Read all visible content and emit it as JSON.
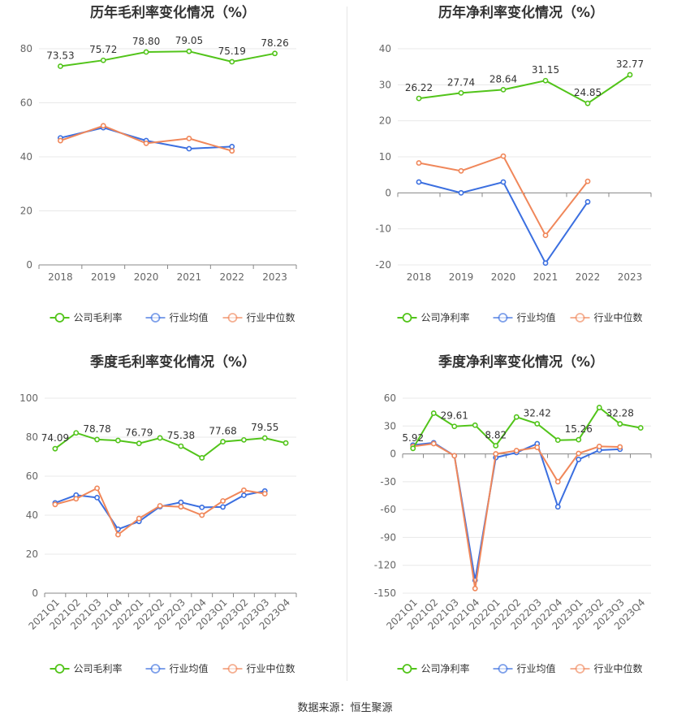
{
  "source_label": "数据来源：恒生聚源",
  "colors": {
    "company": "#52c41a",
    "industry_avg": "#3b6fe0",
    "industry_median": "#f0875a"
  },
  "chart_data": [
    {
      "type": "line",
      "title": "历年毛利率变化情况（%）",
      "categories": [
        "2018",
        "2019",
        "2020",
        "2021",
        "2022",
        "2023"
      ],
      "ylim": [
        0,
        80
      ],
      "yticks": [
        0,
        20,
        40,
        60,
        80
      ],
      "grid": true,
      "legend_position": "bottom",
      "series": [
        {
          "name": "公司毛利率",
          "key": "company",
          "values": [
            73.53,
            75.72,
            78.8,
            79.05,
            75.19,
            78.26
          ],
          "labels": [
            "73.53",
            "75.72",
            "78.80",
            "79.05",
            "75.19",
            "78.26"
          ]
        },
        {
          "name": "行业均值",
          "key": "industry_avg",
          "values": [
            47.0,
            50.8,
            46.0,
            43.0,
            43.8,
            null
          ]
        },
        {
          "name": "行业中位数",
          "key": "industry_median",
          "values": [
            46.0,
            51.5,
            45.0,
            46.8,
            42.2,
            null
          ]
        }
      ]
    },
    {
      "type": "line",
      "title": "历年净利率变化情况（%）",
      "categories": [
        "2018",
        "2019",
        "2020",
        "2021",
        "2022",
        "2023"
      ],
      "ylim": [
        -20,
        40
      ],
      "yticks": [
        -20,
        -10,
        0,
        10,
        20,
        30,
        40
      ],
      "grid": true,
      "legend_position": "bottom",
      "series": [
        {
          "name": "公司净利率",
          "key": "company",
          "values": [
            26.22,
            27.74,
            28.64,
            31.15,
            24.85,
            32.77
          ],
          "labels": [
            "26.22",
            "27.74",
            "28.64",
            "31.15",
            "24.85",
            "32.77"
          ]
        },
        {
          "name": "行业均值",
          "key": "industry_avg",
          "values": [
            3.0,
            0.0,
            3.0,
            -19.5,
            -2.5,
            null
          ]
        },
        {
          "name": "行业中位数",
          "key": "industry_median",
          "values": [
            8.3,
            6.1,
            10.2,
            -11.8,
            3.2,
            null
          ]
        }
      ]
    },
    {
      "type": "line",
      "title": "季度毛利率变化情况（%）",
      "categories": [
        "2021Q1",
        "2021Q2",
        "2021Q3",
        "2021Q4",
        "2022Q1",
        "2022Q2",
        "2022Q3",
        "2022Q4",
        "2023Q1",
        "2023Q2",
        "2023Q3",
        "2023Q4"
      ],
      "ylim": [
        0,
        100
      ],
      "yticks": [
        0,
        20,
        40,
        60,
        80,
        100
      ],
      "grid": true,
      "legend_position": "bottom",
      "series": [
        {
          "name": "公司毛利率",
          "key": "company",
          "values": [
            74.09,
            82.2,
            78.78,
            78.3,
            76.79,
            79.6,
            75.38,
            69.4,
            77.68,
            78.6,
            79.55,
            77.0
          ],
          "labels": [
            "74.09",
            null,
            "78.78",
            null,
            "76.79",
            null,
            "75.38",
            null,
            "77.68",
            null,
            "79.55",
            null
          ]
        },
        {
          "name": "行业均值",
          "key": "industry_avg",
          "values": [
            46.3,
            50.3,
            49.0,
            32.8,
            36.8,
            44.4,
            46.6,
            44.0,
            44.2,
            50.2,
            52.4,
            null
          ]
        },
        {
          "name": "行业中位数",
          "key": "industry_median",
          "values": [
            45.5,
            48.4,
            53.8,
            30.0,
            38.3,
            44.8,
            44.3,
            40.0,
            47.3,
            52.8,
            51.0,
            null
          ]
        }
      ]
    },
    {
      "type": "line",
      "title": "季度净利率变化情况（%）",
      "categories": [
        "2021Q1",
        "2021Q2",
        "2021Q3",
        "2021Q4",
        "2022Q1",
        "2022Q2",
        "2022Q3",
        "2022Q4",
        "2023Q1",
        "2023Q2",
        "2023Q3",
        "2023Q4"
      ],
      "ylim": [
        -150,
        60
      ],
      "yticks": [
        -150,
        -120,
        -90,
        -60,
        -30,
        0,
        30,
        60
      ],
      "grid": true,
      "legend_position": "bottom",
      "series": [
        {
          "name": "公司净利率",
          "key": "company",
          "values": [
            5.92,
            43.8,
            29.61,
            30.9,
            8.82,
            39.7,
            32.42,
            14.8,
            15.26,
            49.9,
            32.28,
            28.0
          ],
          "labels": [
            "5.92",
            null,
            "29.61",
            null,
            "8.82",
            null,
            "32.42",
            null,
            "15.26",
            null,
            "32.28",
            null
          ]
        },
        {
          "name": "行业均值",
          "key": "industry_avg",
          "values": [
            9.5,
            12.0,
            -2.0,
            -136.0,
            -4.0,
            1.5,
            11.0,
            -57.0,
            -6.0,
            4.0,
            5.0,
            null
          ]
        },
        {
          "name": "行业中位数",
          "key": "industry_median",
          "values": [
            8.0,
            11.0,
            -2.0,
            -145.0,
            0.0,
            3.5,
            7.0,
            -30.0,
            0.5,
            8.0,
            7.5,
            null
          ]
        }
      ]
    }
  ]
}
